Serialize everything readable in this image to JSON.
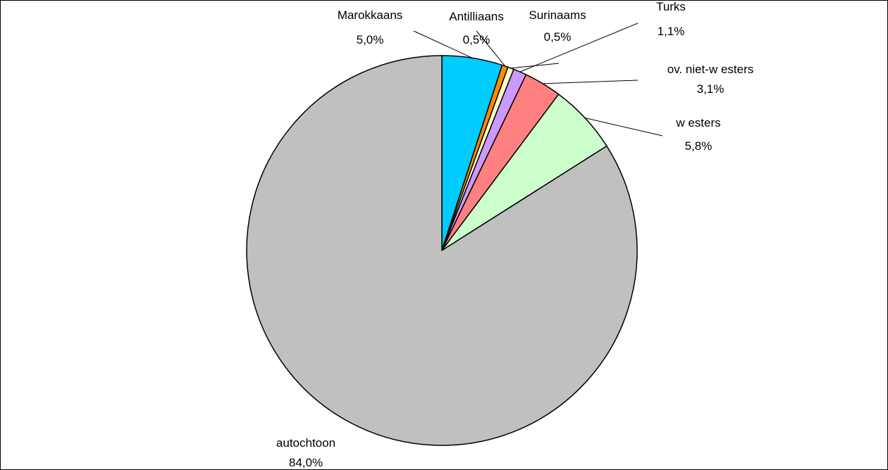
{
  "chart_data": {
    "type": "pie",
    "title": "",
    "slices": [
      {
        "label": "Marokkaans",
        "value_label": "5,0%",
        "value": 5.0,
        "color": "#00ccff"
      },
      {
        "label": "Antilliaans",
        "value_label": "0,5%",
        "value": 0.5,
        "color": "#ff8c00"
      },
      {
        "label": "Surinaams",
        "value_label": "0,5%",
        "value": 0.5,
        "color": "#ffffcc"
      },
      {
        "label": "Turks",
        "value_label": "1,1%",
        "value": 1.1,
        "color": "#cc99ff"
      },
      {
        "label": "ov. niet-w esters",
        "value_label": "3,1%",
        "value": 3.1,
        "color": "#ff8080"
      },
      {
        "label": "w esters",
        "value_label": "5,8%",
        "value": 5.8,
        "color": "#ccffcc"
      },
      {
        "label": "autochtoon",
        "value_label": "84,0%",
        "value": 84.0,
        "color": "#c0c0c0"
      }
    ],
    "start_angle": "12 o'clock",
    "direction": "clockwise",
    "legend": "none"
  }
}
